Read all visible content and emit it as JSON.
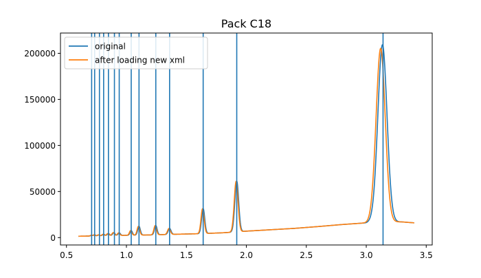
{
  "chart_data": {
    "type": "line",
    "title": "Pack C18",
    "xlabel": "",
    "ylabel": "",
    "xlim": [
      0.45,
      3.55
    ],
    "ylim": [
      -8000,
      222000
    ],
    "x_ticks": [
      0.5,
      1.0,
      1.5,
      2.0,
      2.5,
      3.0,
      3.5
    ],
    "x_tick_labels": [
      "0.5",
      "1.0",
      "1.5",
      "2.0",
      "2.5",
      "3.0",
      "3.5"
    ],
    "y_ticks": [
      0,
      50000,
      100000,
      150000,
      200000
    ],
    "y_tick_labels": [
      "0",
      "50000",
      "100000",
      "150000",
      "200000"
    ],
    "grid": false,
    "legend_position": "top-left",
    "vertical_markers": {
      "color": "#1f77b4",
      "x": [
        0.71,
        0.735,
        0.775,
        0.81,
        0.85,
        0.9,
        0.94,
        1.04,
        1.105,
        1.245,
        1.36,
        1.64,
        1.92,
        3.14
      ]
    },
    "series": [
      {
        "name": "original",
        "color": "#1f77b4",
        "baseline": [
          [
            0.6,
            1500
          ],
          [
            0.7,
            1700
          ],
          [
            0.8,
            2100
          ],
          [
            0.9,
            2200
          ],
          [
            1.0,
            2500
          ],
          [
            1.2,
            2900
          ],
          [
            1.4,
            3600
          ],
          [
            1.6,
            4200
          ],
          [
            1.8,
            5200
          ],
          [
            1.9,
            6000
          ],
          [
            2.0,
            7000
          ],
          [
            2.2,
            8500
          ],
          [
            2.4,
            10000
          ],
          [
            2.6,
            12000
          ],
          [
            2.8,
            14200
          ],
          [
            3.0,
            16000
          ],
          [
            3.05,
            17500
          ],
          [
            3.3,
            17000
          ],
          [
            3.4,
            16000
          ]
        ],
        "peaks": [
          [
            0.71,
            800,
            0.008
          ],
          [
            0.735,
            1200,
            0.008
          ],
          [
            0.77,
            1000,
            0.008
          ],
          [
            0.81,
            1500,
            0.009
          ],
          [
            0.85,
            2200,
            0.01
          ],
          [
            0.895,
            3200,
            0.01
          ],
          [
            0.94,
            2800,
            0.01
          ],
          [
            1.04,
            5000,
            0.01
          ],
          [
            1.105,
            9500,
            0.011
          ],
          [
            1.245,
            10000,
            0.011
          ],
          [
            1.36,
            6500,
            0.012
          ],
          [
            1.64,
            27000,
            0.013
          ],
          [
            1.92,
            55000,
            0.016
          ],
          [
            3.135,
            192000,
            0.038
          ]
        ]
      },
      {
        "name": "after loading new xml",
        "color": "#ff7f0e",
        "baseline": [
          [
            0.6,
            1500
          ],
          [
            0.7,
            1700
          ],
          [
            0.8,
            2100
          ],
          [
            0.9,
            2200
          ],
          [
            1.0,
            2500
          ],
          [
            1.2,
            2900
          ],
          [
            1.4,
            3600
          ],
          [
            1.6,
            4200
          ],
          [
            1.8,
            5200
          ],
          [
            1.9,
            6000
          ],
          [
            2.0,
            7000
          ],
          [
            2.2,
            8500
          ],
          [
            2.4,
            10000
          ],
          [
            2.6,
            12000
          ],
          [
            2.8,
            14200
          ],
          [
            3.0,
            16000
          ],
          [
            3.05,
            17500
          ],
          [
            3.3,
            17000
          ],
          [
            3.4,
            16000
          ]
        ],
        "peaks": [
          [
            0.705,
            800,
            0.008
          ],
          [
            0.73,
            1200,
            0.008
          ],
          [
            0.765,
            1000,
            0.008
          ],
          [
            0.805,
            1500,
            0.009
          ],
          [
            0.845,
            2200,
            0.01
          ],
          [
            0.89,
            3200,
            0.01
          ],
          [
            0.935,
            2800,
            0.01
          ],
          [
            1.035,
            5000,
            0.01
          ],
          [
            1.1,
            9500,
            0.011
          ],
          [
            1.24,
            10000,
            0.011
          ],
          [
            1.355,
            6500,
            0.012
          ],
          [
            1.635,
            27000,
            0.013
          ],
          [
            1.915,
            55000,
            0.016
          ],
          [
            3.12,
            188000,
            0.038
          ]
        ]
      }
    ]
  }
}
